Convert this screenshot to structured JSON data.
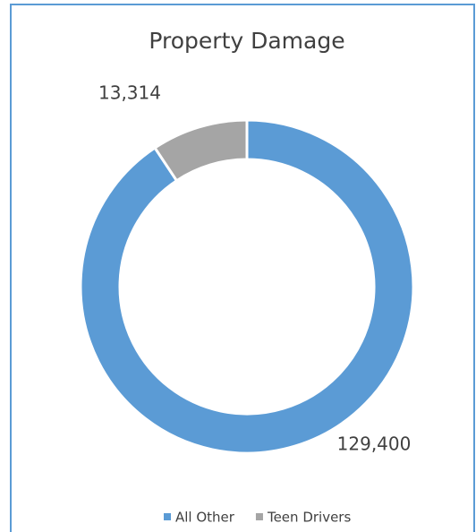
{
  "chart_data": {
    "type": "pie",
    "title": "Property Damage",
    "categories": [
      "All Other",
      "Teen Drivers"
    ],
    "values": [
      129400,
      13314
    ],
    "value_labels": [
      "129,400",
      "13,314"
    ],
    "colors": [
      "#5b9bd5",
      "#a5a5a5"
    ],
    "legend": "bottom"
  }
}
